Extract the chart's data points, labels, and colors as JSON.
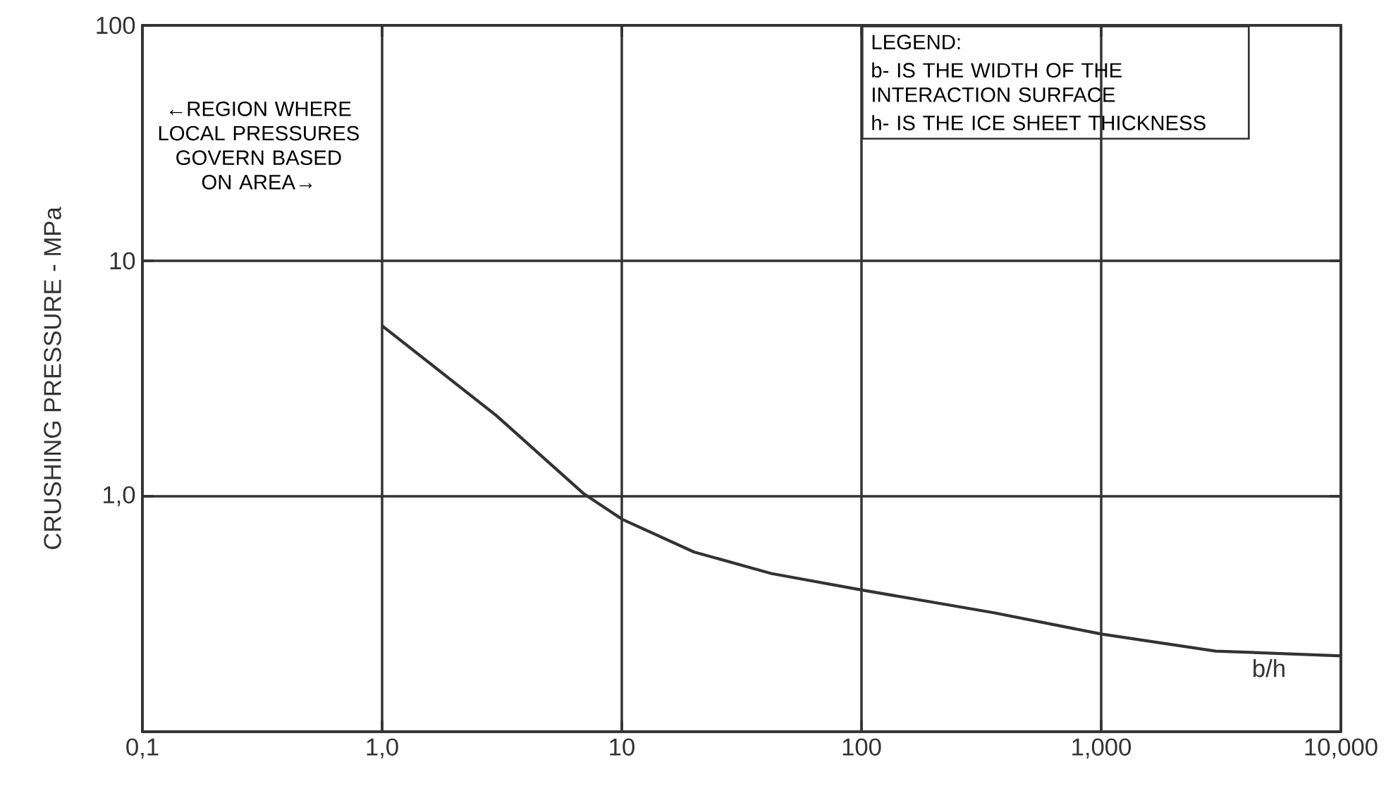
{
  "chart_data": {
    "type": "line",
    "ylabel": "CRUSHING PRESSURE - MPa",
    "xlabel": "b/h",
    "x": [
      1,
      3,
      6.9,
      10,
      20,
      42,
      100,
      357,
      1000,
      3000,
      10000
    ],
    "series": [
      {
        "color": "#333333",
        "values": [
          5.3,
          2.2,
          1.03,
          0.8,
          0.58,
          0.47,
          0.4,
          0.32,
          0.26,
          0.22,
          0.21
        ]
      }
    ],
    "log": "xy",
    "grid": true,
    "marker": "none",
    "line_style": "solid",
    "xlim": [
      0.1,
      10000
    ],
    "ylim": [
      0.1,
      100
    ],
    "xticks": [
      {
        "value": 0.1,
        "label": "0,1"
      },
      {
        "value": 1,
        "label": "1,0"
      },
      10,
      100,
      {
        "value": 1000,
        "label": "1,000"
      },
      {
        "value": 10000,
        "label": "10,000"
      }
    ],
    "yticks": [
      {
        "value": 0.1,
        "label": null
      },
      {
        "value": 1,
        "label": "1,0"
      },
      10,
      100
    ],
    "annotations": [
      "←REGION WHERE LOCAL PRESSURES GOVERN BASED ON AREA→",
      "LEGEND:",
      "b- IS THE WIDTH OF THE INTERACTION SURFACE",
      "h- IS THE ICE SHEET THICKNESS"
    ]
  }
}
